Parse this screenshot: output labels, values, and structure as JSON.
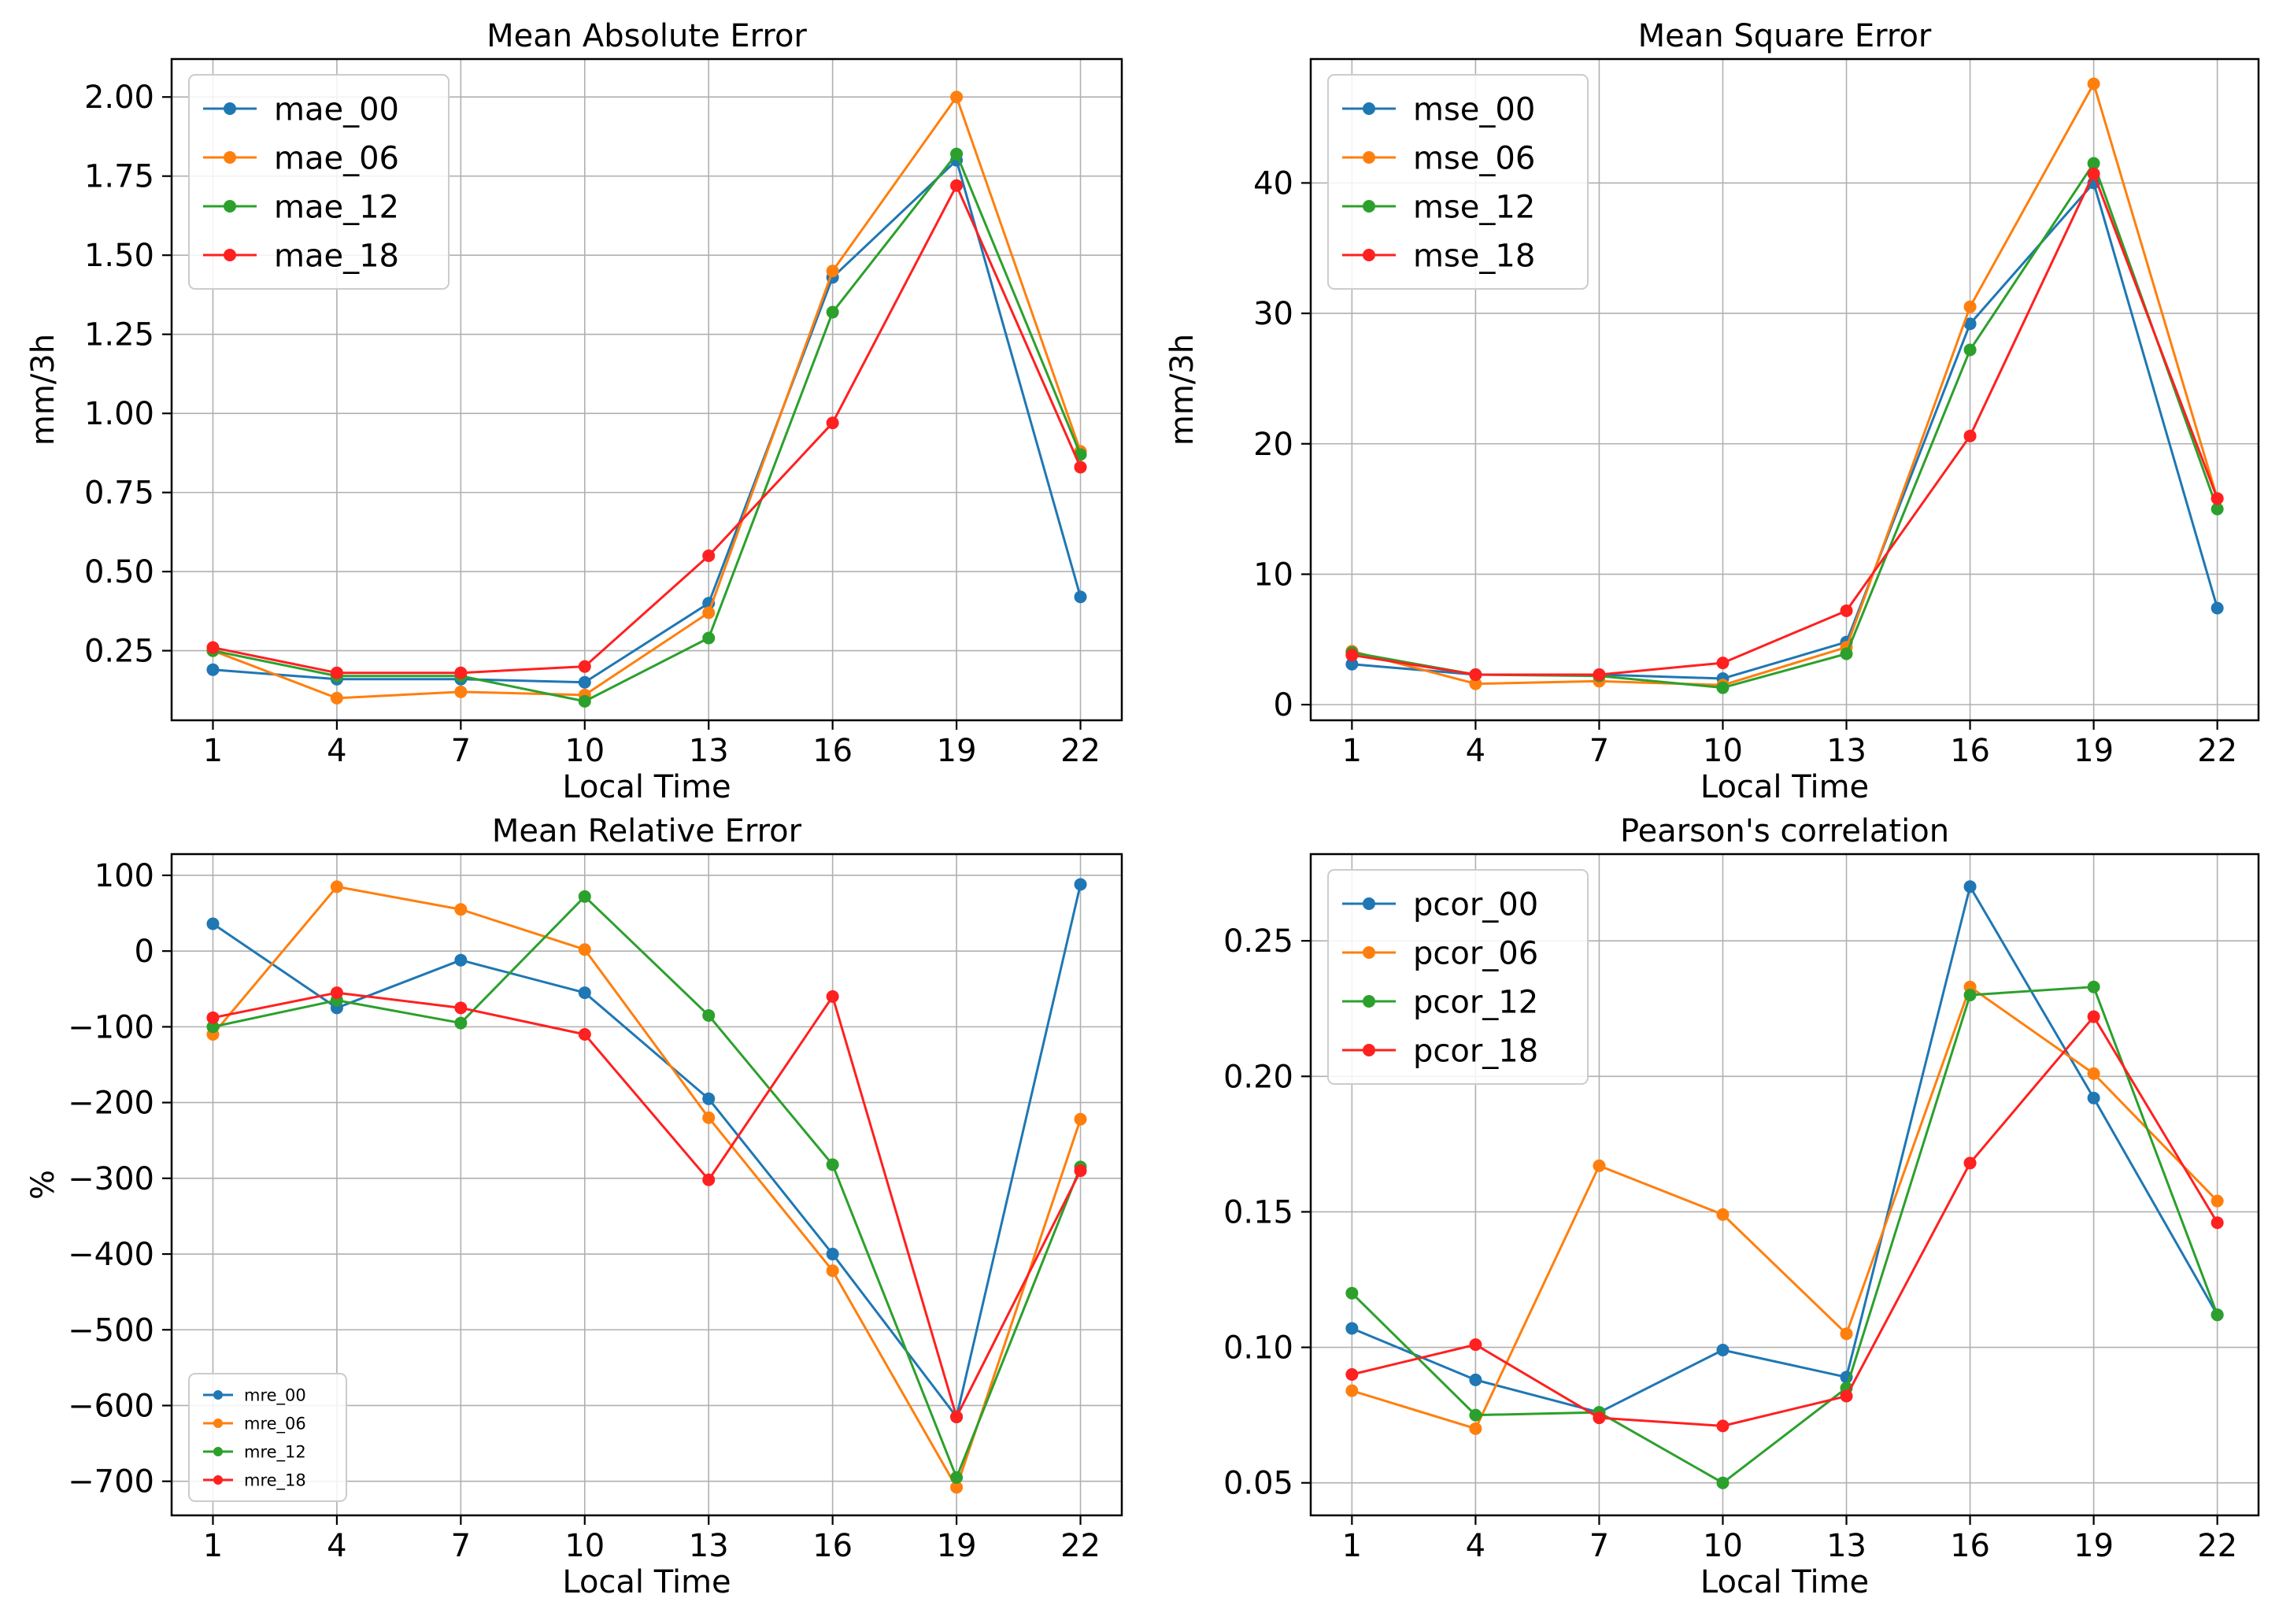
{
  "chart_data": [
    {
      "type": "line",
      "title": "Mean Absolute Error",
      "xlabel": "Local Time",
      "ylabel": "mm/3h",
      "x": [
        1,
        4,
        7,
        10,
        13,
        16,
        19,
        22
      ],
      "xticks": [
        "1",
        "4",
        "7",
        "10",
        "13",
        "16",
        "19",
        "22"
      ],
      "xlim": [
        0,
        23
      ],
      "ylim": [
        0.03,
        2.12
      ],
      "yticks": [
        0.25,
        0.5,
        0.75,
        1.0,
        1.25,
        1.5,
        1.75,
        2.0
      ],
      "ytick_labels": [
        "0.25",
        "0.50",
        "0.75",
        "1.00",
        "1.25",
        "1.50",
        "1.75",
        "2.00"
      ],
      "grid": true,
      "legend_position": "top-left",
      "legend_size": "large",
      "series": [
        {
          "name": "mae_00",
          "color": "#1f77b4",
          "values": [
            0.19,
            0.16,
            0.16,
            0.15,
            0.4,
            1.43,
            1.8,
            0.42
          ]
        },
        {
          "name": "mae_06",
          "color": "#ff7f0e",
          "values": [
            0.25,
            0.1,
            0.12,
            0.11,
            0.37,
            1.45,
            2.0,
            0.88
          ]
        },
        {
          "name": "mae_12",
          "color": "#2ca02c",
          "values": [
            0.25,
            0.17,
            0.17,
            0.09,
            0.29,
            1.32,
            1.82,
            0.87
          ]
        },
        {
          "name": "mae_18",
          "color": "#ff2020",
          "values": [
            0.26,
            0.18,
            0.18,
            0.2,
            0.55,
            0.97,
            1.72,
            0.83
          ]
        }
      ]
    },
    {
      "type": "line",
      "title": "Mean Square Error",
      "xlabel": "Local Time",
      "ylabel": "mm/3h",
      "x": [
        1,
        4,
        7,
        10,
        13,
        16,
        19,
        22
      ],
      "xticks": [
        "1",
        "4",
        "7",
        "10",
        "13",
        "16",
        "19",
        "22"
      ],
      "xlim": [
        0,
        23
      ],
      "ylim": [
        -1.2,
        49.5
      ],
      "yticks": [
        0,
        10,
        20,
        30,
        40
      ],
      "ytick_labels": [
        "0",
        "10",
        "20",
        "30",
        "40"
      ],
      "grid": true,
      "legend_position": "top-left",
      "legend_size": "large",
      "series": [
        {
          "name": "mse_00",
          "color": "#1f77b4",
          "values": [
            3.1,
            2.3,
            2.3,
            2.0,
            4.8,
            29.2,
            40.0,
            7.4
          ]
        },
        {
          "name": "mse_06",
          "color": "#ff7f0e",
          "values": [
            4.1,
            1.6,
            1.8,
            1.5,
            4.4,
            30.5,
            47.6,
            15.8
          ]
        },
        {
          "name": "mse_12",
          "color": "#2ca02c",
          "values": [
            4.0,
            2.3,
            2.2,
            1.3,
            3.9,
            27.2,
            41.5,
            15.0
          ]
        },
        {
          "name": "mse_18",
          "color": "#ff2020",
          "values": [
            3.8,
            2.3,
            2.3,
            3.2,
            7.2,
            20.6,
            40.7,
            15.8
          ]
        }
      ]
    },
    {
      "type": "line",
      "title": "Mean Relative Error",
      "xlabel": "Local Time",
      "ylabel": "%",
      "x": [
        1,
        4,
        7,
        10,
        13,
        16,
        19,
        22
      ],
      "xticks": [
        "1",
        "4",
        "7",
        "10",
        "13",
        "16",
        "19",
        "22"
      ],
      "xlim": [
        0,
        23
      ],
      "ylim": [
        -745,
        128
      ],
      "yticks": [
        -700,
        -600,
        -500,
        -400,
        -300,
        -200,
        -100,
        0,
        100
      ],
      "ytick_labels": [
        "−700",
        "−600",
        "−500",
        "−400",
        "−300",
        "−200",
        "−100",
        "0",
        "100"
      ],
      "grid": true,
      "legend_position": "bottom-left",
      "legend_size": "small",
      "series": [
        {
          "name": "mre_00",
          "color": "#1f77b4",
          "values": [
            36,
            -75,
            -12,
            -55,
            -195,
            -400,
            -615,
            88
          ]
        },
        {
          "name": "mre_06",
          "color": "#ff7f0e",
          "values": [
            -110,
            85,
            55,
            2,
            -220,
            -422,
            -708,
            -222
          ]
        },
        {
          "name": "mre_12",
          "color": "#2ca02c",
          "values": [
            -100,
            -65,
            -95,
            72,
            -85,
            -282,
            -695,
            -285
          ]
        },
        {
          "name": "mre_18",
          "color": "#ff2020",
          "values": [
            -88,
            -55,
            -75,
            -110,
            -302,
            -60,
            -615,
            -290
          ]
        }
      ]
    },
    {
      "type": "line",
      "title": "Pearson's correlation",
      "xlabel": "Local Time",
      "ylabel": "",
      "x": [
        1,
        4,
        7,
        10,
        13,
        16,
        19,
        22
      ],
      "xticks": [
        "1",
        "4",
        "7",
        "10",
        "13",
        "16",
        "19",
        "22"
      ],
      "xlim": [
        0,
        23
      ],
      "ylim": [
        0.038,
        0.282
      ],
      "yticks": [
        0.05,
        0.1,
        0.15,
        0.2,
        0.25
      ],
      "ytick_labels": [
        "0.05",
        "0.10",
        "0.15",
        "0.20",
        "0.25"
      ],
      "grid": true,
      "legend_position": "top-left",
      "legend_size": "large",
      "series": [
        {
          "name": "pcor_00",
          "color": "#1f77b4",
          "values": [
            0.107,
            0.088,
            0.076,
            0.099,
            0.089,
            0.27,
            0.192,
            0.112
          ]
        },
        {
          "name": "pcor_06",
          "color": "#ff7f0e",
          "values": [
            0.084,
            0.07,
            0.167,
            0.149,
            0.105,
            0.233,
            0.201,
            0.154
          ]
        },
        {
          "name": "pcor_12",
          "color": "#2ca02c",
          "values": [
            0.12,
            0.075,
            0.076,
            0.05,
            0.085,
            0.23,
            0.233,
            0.112
          ]
        },
        {
          "name": "pcor_18",
          "color": "#ff2020",
          "values": [
            0.09,
            0.101,
            0.074,
            0.071,
            0.082,
            0.168,
            0.222,
            0.146
          ]
        }
      ]
    }
  ]
}
